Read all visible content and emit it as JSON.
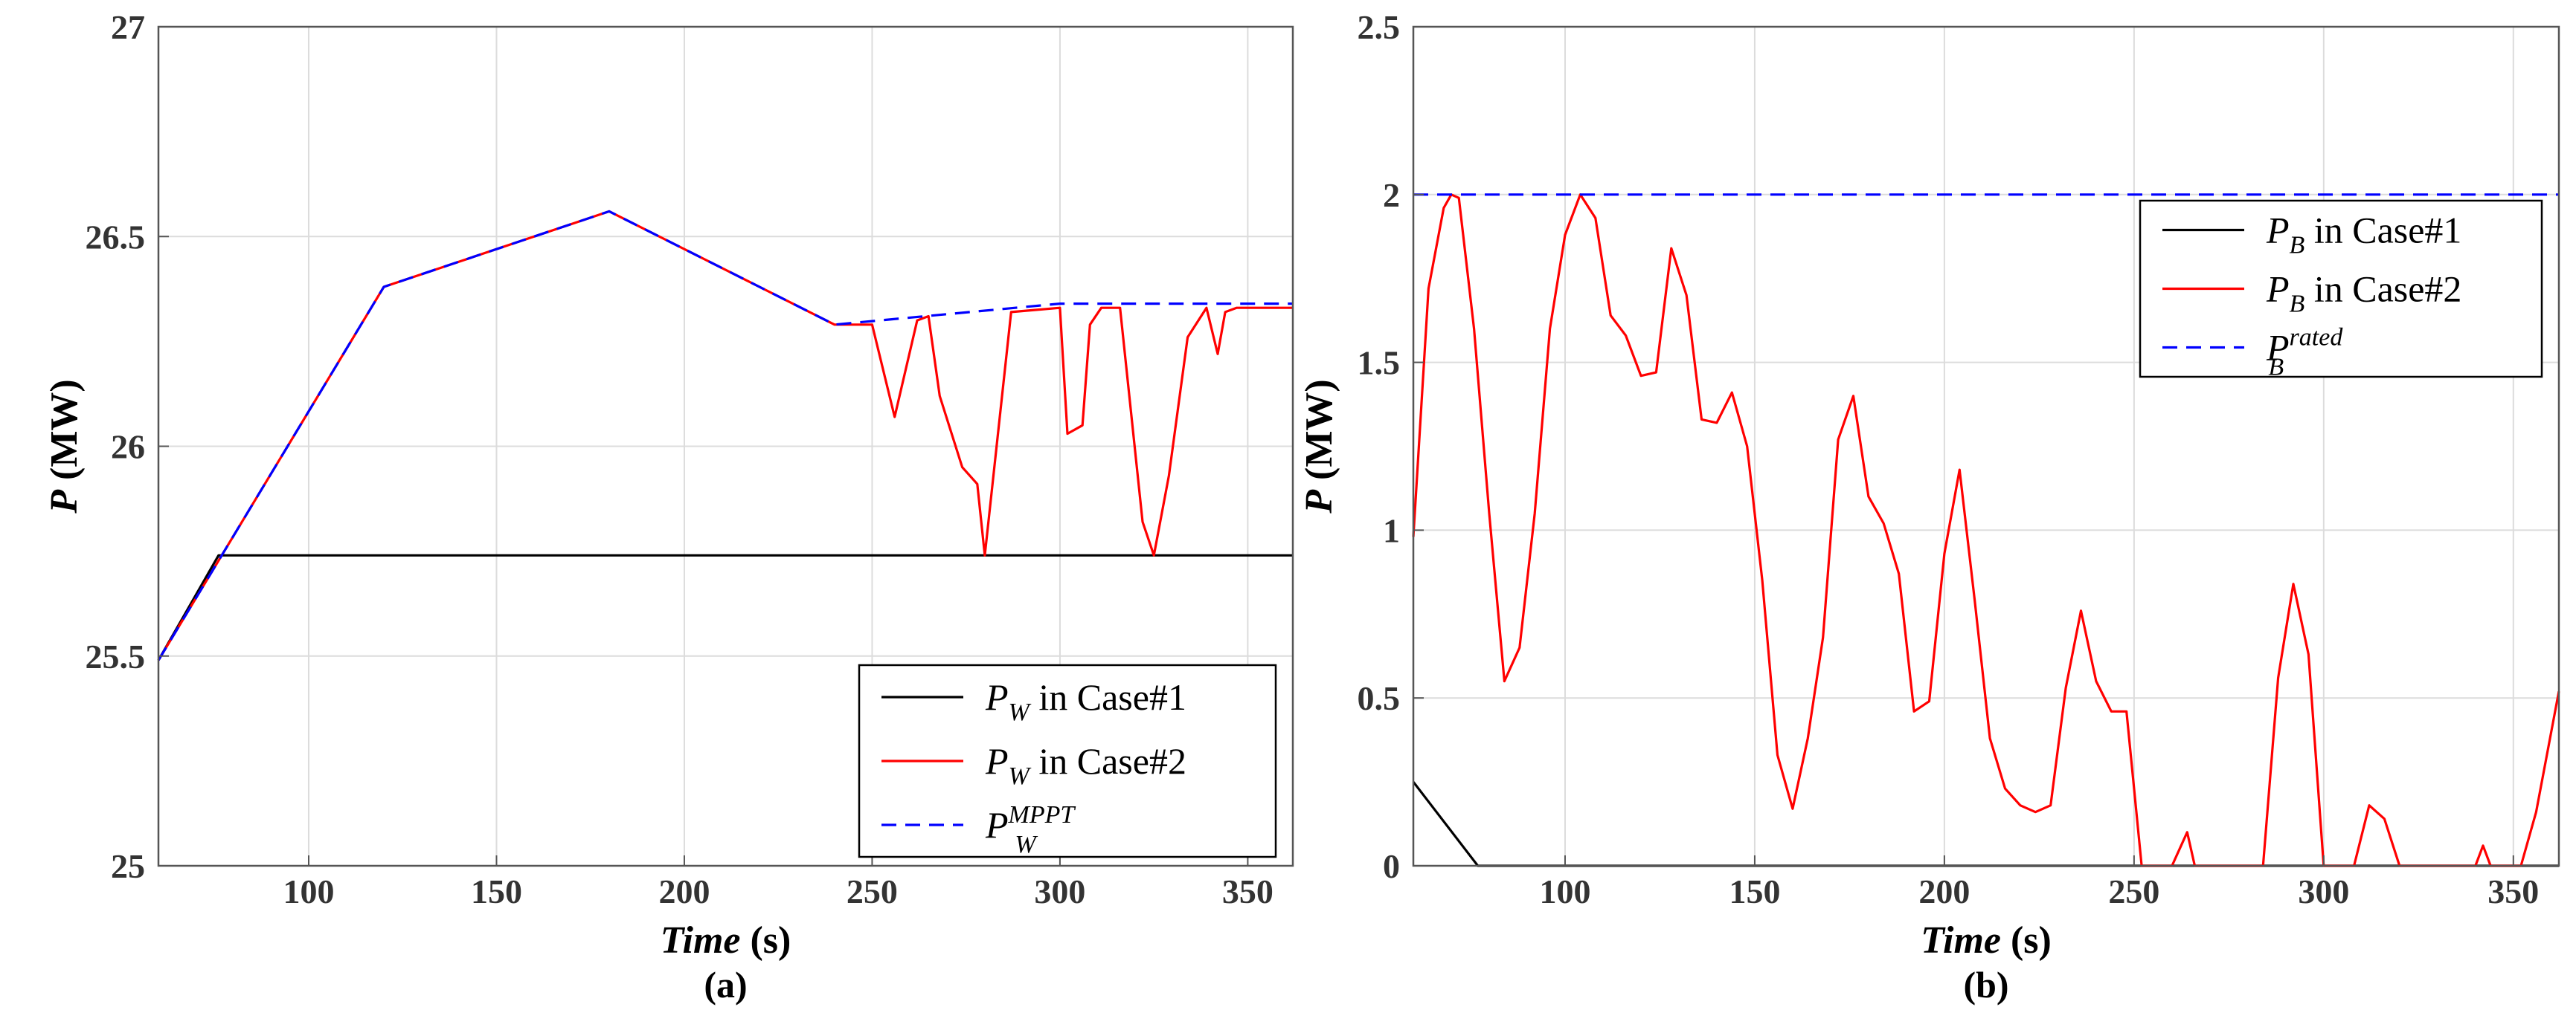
{
  "colors": {
    "case1": "#000000",
    "case2": "#ff0000",
    "reference": "#0000ff"
  },
  "chart_data": [
    {
      "id": "a",
      "type": "line",
      "panel_label": "(a)",
      "xlabel": {
        "italic": "Time",
        "rest": " (s)"
      },
      "ylabel": {
        "italic": "P",
        "rest": " (MW)"
      },
      "xlim": [
        60,
        362
      ],
      "ylim": [
        25,
        27
      ],
      "xticks": [
        100,
        150,
        200,
        250,
        300,
        350
      ],
      "yticks": [
        25,
        25.5,
        26,
        26.5,
        27
      ],
      "grid": true,
      "legend_position": "bottom-right",
      "series": [
        {
          "key": "case1",
          "legend": {
            "main": "P",
            "sub": "W",
            "sup": "",
            "rest": " in Case#1"
          },
          "style": "solid",
          "x": [
            60,
            76,
            362
          ],
          "y": [
            25.49,
            25.74,
            25.74
          ]
        },
        {
          "key": "case2",
          "legend": {
            "main": "P",
            "sub": "W",
            "sup": "",
            "rest": " in Case#2"
          },
          "style": "solid",
          "x": [
            60,
            120,
            180,
            240,
            250,
            256,
            262,
            265,
            268,
            274,
            278,
            280,
            287,
            300,
            302,
            306,
            308,
            311,
            316,
            322,
            325,
            329,
            334,
            339,
            342,
            344,
            347,
            362
          ],
          "y": [
            25.49,
            26.38,
            26.56,
            26.29,
            26.29,
            26.07,
            26.3,
            26.31,
            26.12,
            25.95,
            25.91,
            25.74,
            26.32,
            26.33,
            26.03,
            26.05,
            26.29,
            26.33,
            26.33,
            25.82,
            25.74,
            25.93,
            26.26,
            26.33,
            26.22,
            26.32,
            26.33,
            26.33
          ]
        },
        {
          "key": "reference",
          "legend": {
            "main": "P",
            "sub": "W",
            "sup": "MPPT",
            "rest": ""
          },
          "style": "dashed",
          "x": [
            60,
            120,
            180,
            240,
            300,
            362
          ],
          "y": [
            25.49,
            26.38,
            26.56,
            26.29,
            26.34,
            26.34
          ]
        }
      ]
    },
    {
      "id": "b",
      "type": "line",
      "panel_label": "(b)",
      "xlabel": {
        "italic": "Time",
        "rest": " (s)"
      },
      "ylabel": {
        "italic": "P",
        "rest": " (MW)"
      },
      "xlim": [
        60,
        362
      ],
      "ylim": [
        0,
        2.5
      ],
      "xticks": [
        100,
        150,
        200,
        250,
        300,
        350
      ],
      "yticks": [
        0,
        0.5,
        1,
        1.5,
        2,
        2.5
      ],
      "grid": true,
      "legend_position": "top-right",
      "series": [
        {
          "key": "case1",
          "legend": {
            "main": "P",
            "sub": "B",
            "sup": "",
            "rest": " in Case#1"
          },
          "style": "solid",
          "x": [
            60,
            77,
            362
          ],
          "y": [
            0.25,
            0,
            0
          ]
        },
        {
          "key": "case2",
          "legend": {
            "main": "P",
            "sub": "B",
            "sup": "",
            "rest": " in Case#2"
          },
          "style": "solid",
          "x": [
            60,
            64,
            68,
            70,
            72,
            76,
            80,
            84,
            88,
            92,
            96,
            100,
            104,
            108,
            112,
            116,
            120,
            124,
            128,
            132,
            136,
            140,
            144,
            148,
            152,
            156,
            160,
            164,
            168,
            172,
            176,
            180,
            184,
            188,
            192,
            196,
            200,
            204,
            208,
            212,
            216,
            220,
            224,
            228,
            232,
            236,
            240,
            244,
            248,
            252,
            256,
            260,
            264,
            266,
            268,
            272,
            276,
            280,
            284,
            288,
            292,
            296,
            300,
            304,
            308,
            312,
            316,
            320,
            324,
            328,
            332,
            336,
            340,
            342,
            344,
            348,
            352,
            356,
            362
          ],
          "y": [
            0.98,
            1.72,
            1.96,
            2.0,
            1.99,
            1.6,
            1.05,
            0.55,
            0.65,
            1.05,
            1.6,
            1.88,
            2.0,
            1.93,
            1.64,
            1.58,
            1.46,
            1.47,
            1.84,
            1.7,
            1.33,
            1.32,
            1.41,
            1.25,
            0.85,
            0.33,
            0.17,
            0.38,
            0.68,
            1.27,
            1.4,
            1.1,
            1.02,
            0.87,
            0.46,
            0.49,
            0.93,
            1.18,
            0.79,
            0.38,
            0.23,
            0.18,
            0.16,
            0.18,
            0.53,
            0.76,
            0.55,
            0.46,
            0.46,
            0.0,
            0.0,
            0.0,
            0.1,
            0.0,
            0.0,
            0.0,
            0.0,
            0.0,
            0.0,
            0.56,
            0.84,
            0.63,
            0.0,
            0.0,
            0.0,
            0.18,
            0.14,
            0.0,
            0.0,
            0.0,
            0.0,
            0.0,
            0.0,
            0.06,
            0.0,
            0.0,
            0.0,
            0.16,
            0.52
          ]
        },
        {
          "key": "reference",
          "legend": {
            "main": "P",
            "sub": "B",
            "sup": "rated",
            "rest": ""
          },
          "style": "dashed",
          "x": [
            60,
            362
          ],
          "y": [
            2.0,
            2.0
          ]
        }
      ]
    }
  ]
}
